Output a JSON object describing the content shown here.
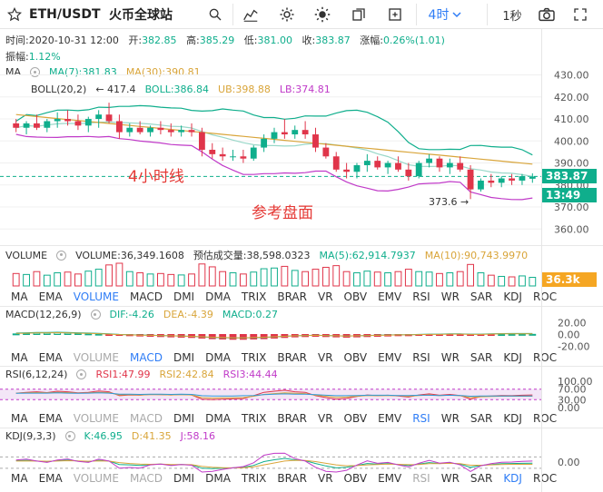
{
  "toolbar": {
    "symbol": "ETH/USDT",
    "exchange": "火币全球站",
    "period": "4时",
    "interval": "1秒",
    "icons": [
      "star-icon",
      "search-icon",
      "indicator-icon",
      "settings-icon",
      "theme-icon",
      "copy-icon",
      "fullscreen-icon",
      "camera-icon",
      "expand-icon"
    ]
  },
  "info": {
    "time_label": "时间:",
    "time": "2020-10-31 12:00",
    "open_label": "开:",
    "open": "382.85",
    "high_label": "高:",
    "high": "385.29",
    "low_label": "低:",
    "low": "381.00",
    "close_label": "收:",
    "close": "383.87",
    "change_label": "涨幅:",
    "change": "0.26%(1.01)",
    "amp_label": "振幅:",
    "amp": "1.12%"
  },
  "main_legend": {
    "ma_name": "MA",
    "ma7": "MA(7):381.83",
    "ma30": "MA(30):390.81",
    "boll_name": "BOLL(20,2)",
    "boll": "BOLL:386.84",
    "ub": "UB:398.88",
    "lb": "LB:374.81"
  },
  "annotations": {
    "a1": "4小时线",
    "a2": "参考盘面",
    "max": "← 417.4",
    "min": "373.6 →"
  },
  "price_badges": {
    "last": "383.87",
    "countdown": "13:49",
    "volume": "36.3k"
  },
  "volume_legend": {
    "name": "VOLUME",
    "volume": "VOLUME:36,349.1608",
    "forecast": "预估成交量:38,598.0323",
    "ma5": "MA(5):62,914.7937",
    "ma10": "MA(10):90,743.9970"
  },
  "macd_legend": {
    "name": "MACD(12,26,9)",
    "dif": "DIF:-4.26",
    "dea": "DEA:-4.39",
    "macd": "MACD:0.27"
  },
  "rsi_legend": {
    "name": "RSI(6,12,24)",
    "rsi1": "RSI1:47.99",
    "rsi2": "RSI2:42.84",
    "rsi3": "RSI3:44.44"
  },
  "kdj_legend": {
    "name": "KDJ(9,3,3)",
    "k": "K:46.95",
    "d": "D:41.35",
    "j": "J:58.16"
  },
  "indicator_tabs": [
    "MA",
    "EMA",
    "VOLUME",
    "MACD",
    "DMI",
    "DMA",
    "TRIX",
    "BRAR",
    "VR",
    "OBV",
    "EMV",
    "RSI",
    "WR",
    "SAR",
    "KDJ",
    "ROC"
  ],
  "colors": {
    "up": "#0fae8c",
    "down": "#e0354a",
    "accent": "#2f7df6",
    "ma7": "#0fae8c",
    "ma30": "#d9a53a",
    "boll_lb": "#c03ac8",
    "ub": "#d9a53a"
  },
  "chart_data": [
    {
      "type": "candlestick",
      "title": "",
      "ylim": [
        356,
        436
      ],
      "yticks": [
        "430.00",
        "420.00",
        "410.00",
        "400.00",
        "390.00",
        "380.00",
        "370.00",
        "360.00"
      ],
      "candles": [
        {
          "o": 408,
          "h": 410,
          "l": 404,
          "c": 406
        },
        {
          "o": 406,
          "h": 409,
          "l": 403,
          "c": 408
        },
        {
          "o": 408,
          "h": 412,
          "l": 405,
          "c": 406
        },
        {
          "o": 406,
          "h": 410,
          "l": 404,
          "c": 409
        },
        {
          "o": 409,
          "h": 413,
          "l": 406,
          "c": 410
        },
        {
          "o": 410,
          "h": 414,
          "l": 407,
          "c": 409
        },
        {
          "o": 409,
          "h": 412,
          "l": 405,
          "c": 407
        },
        {
          "o": 407,
          "h": 411,
          "l": 404,
          "c": 410
        },
        {
          "o": 410,
          "h": 414,
          "l": 406,
          "c": 412
        },
        {
          "o": 412,
          "h": 417.4,
          "l": 408,
          "c": 409
        },
        {
          "o": 409,
          "h": 412,
          "l": 401,
          "c": 404
        },
        {
          "o": 404,
          "h": 408,
          "l": 402,
          "c": 406
        },
        {
          "o": 406,
          "h": 409,
          "l": 403,
          "c": 404
        },
        {
          "o": 404,
          "h": 407,
          "l": 402,
          "c": 406
        },
        {
          "o": 406,
          "h": 409,
          "l": 403,
          "c": 405
        },
        {
          "o": 405,
          "h": 408,
          "l": 402,
          "c": 404
        },
        {
          "o": 404,
          "h": 407,
          "l": 402,
          "c": 405
        },
        {
          "o": 405,
          "h": 408,
          "l": 402,
          "c": 404
        },
        {
          "o": 404,
          "h": 406,
          "l": 393,
          "c": 396
        },
        {
          "o": 396,
          "h": 399,
          "l": 392,
          "c": 394
        },
        {
          "o": 394,
          "h": 397,
          "l": 391,
          "c": 393
        },
        {
          "o": 393,
          "h": 396,
          "l": 391,
          "c": 393
        },
        {
          "o": 393,
          "h": 396,
          "l": 390,
          "c": 392
        },
        {
          "o": 392,
          "h": 398,
          "l": 391,
          "c": 397
        },
        {
          "o": 397,
          "h": 403,
          "l": 395,
          "c": 401
        },
        {
          "o": 401,
          "h": 406,
          "l": 399,
          "c": 404
        },
        {
          "o": 404,
          "h": 410,
          "l": 401,
          "c": 403
        },
        {
          "o": 403,
          "h": 407,
          "l": 401,
          "c": 405
        },
        {
          "o": 405,
          "h": 409,
          "l": 401,
          "c": 403
        },
        {
          "o": 403,
          "h": 406,
          "l": 395,
          "c": 397
        },
        {
          "o": 397,
          "h": 399,
          "l": 392,
          "c": 393
        },
        {
          "o": 393,
          "h": 395,
          "l": 386,
          "c": 387
        },
        {
          "o": 387,
          "h": 390,
          "l": 383,
          "c": 386
        },
        {
          "o": 386,
          "h": 390,
          "l": 383,
          "c": 389
        },
        {
          "o": 389,
          "h": 394,
          "l": 386,
          "c": 391
        },
        {
          "o": 391,
          "h": 393,
          "l": 387,
          "c": 388
        },
        {
          "o": 388,
          "h": 391,
          "l": 385,
          "c": 390
        },
        {
          "o": 390,
          "h": 393,
          "l": 386,
          "c": 387
        },
        {
          "o": 387,
          "h": 390,
          "l": 382,
          "c": 384
        },
        {
          "o": 384,
          "h": 391,
          "l": 383,
          "c": 390
        },
        {
          "o": 390,
          "h": 394,
          "l": 388,
          "c": 392
        },
        {
          "o": 392,
          "h": 393,
          "l": 386,
          "c": 388
        },
        {
          "o": 388,
          "h": 392,
          "l": 385,
          "c": 390
        },
        {
          "o": 390,
          "h": 393,
          "l": 386,
          "c": 387
        },
        {
          "o": 387,
          "h": 389,
          "l": 373.6,
          "c": 378
        },
        {
          "o": 378,
          "h": 383,
          "l": 377,
          "c": 382
        },
        {
          "o": 382,
          "h": 385,
          "l": 379,
          "c": 381
        },
        {
          "o": 381,
          "h": 384,
          "l": 379,
          "c": 383
        },
        {
          "o": 383,
          "h": 385,
          "l": 380,
          "c": 382
        },
        {
          "o": 382,
          "h": 385,
          "l": 380,
          "c": 384
        },
        {
          "o": 382.85,
          "h": 385.29,
          "l": 381,
          "c": 383.87
        }
      ]
    },
    {
      "type": "bar",
      "title": "VOLUME",
      "ylabel": "",
      "values": [
        52,
        48,
        60,
        45,
        55,
        58,
        50,
        62,
        70,
        88,
        95,
        60,
        55,
        50,
        52,
        48,
        46,
        50,
        92,
        80,
        60,
        55,
        50,
        58,
        72,
        75,
        82,
        65,
        60,
        70,
        78,
        85,
        60,
        55,
        62,
        58,
        55,
        60,
        70,
        60,
        58,
        52,
        55,
        60,
        90,
        55,
        45,
        40,
        38,
        42,
        36
      ]
    },
    {
      "type": "bar",
      "title": "MACD",
      "yticks": [
        "20.00",
        "0.00",
        "-20.00"
      ],
      "values": [
        1,
        1.5,
        2,
        2,
        2.5,
        2,
        1.5,
        1,
        0.5,
        -0.5,
        -1.5,
        -2,
        -2.5,
        -3,
        -3.5,
        -4,
        -4.5,
        -5,
        -6,
        -7,
        -7.5,
        -8,
        -8,
        -7.5,
        -7,
        -6,
        -5,
        -4,
        -3.5,
        -3,
        -3.5,
        -4,
        -4.5,
        -4,
        -3.5,
        -3,
        -2.5,
        -2,
        -2,
        -1.5,
        -1,
        -1,
        -0.5,
        -0.5,
        -1,
        -1,
        -0.5,
        0,
        0.2,
        0.25,
        0.27
      ]
    },
    {
      "type": "line",
      "title": "RSI",
      "yticks": [
        "100.00",
        "70.00",
        "30.00",
        "0.00"
      ],
      "series": [
        {
          "name": "RSI1",
          "values": [
            55,
            58,
            60,
            57,
            62,
            60,
            56,
            58,
            63,
            60,
            45,
            48,
            47,
            50,
            49,
            48,
            50,
            48,
            32,
            30,
            32,
            33,
            34,
            45,
            58,
            62,
            66,
            60,
            58,
            45,
            38,
            32,
            35,
            42,
            48,
            45,
            47,
            44,
            40,
            48,
            52,
            47,
            50,
            46,
            32,
            42,
            44,
            46,
            45,
            47,
            48
          ]
        },
        {
          "name": "RSI2",
          "values": [
            55,
            56,
            57,
            56,
            58,
            57,
            55,
            56,
            58,
            57,
            48,
            49,
            48,
            49,
            49,
            48,
            49,
            48,
            38,
            36,
            37,
            37,
            38,
            43,
            50,
            53,
            56,
            54,
            53,
            47,
            43,
            39,
            40,
            43,
            46,
            45,
            46,
            45,
            43,
            46,
            48,
            46,
            47,
            45,
            38,
            41,
            42,
            43,
            43,
            43,
            43
          ]
        },
        {
          "name": "RSI3",
          "values": [
            54,
            55,
            55,
            55,
            56,
            55,
            54,
            55,
            56,
            55,
            51,
            51,
            50,
            51,
            51,
            50,
            51,
            50,
            45,
            44,
            44,
            44,
            45,
            46,
            49,
            51,
            52,
            51,
            51,
            49,
            47,
            45,
            45,
            46,
            47,
            47,
            47,
            46,
            46,
            47,
            47,
            46,
            47,
            46,
            43,
            44,
            44,
            44,
            44,
            44,
            44
          ]
        }
      ]
    },
    {
      "type": "line",
      "title": "KDJ",
      "yticks": [
        "0.00"
      ],
      "series": [
        {
          "name": "K",
          "values": [
            60,
            62,
            58,
            55,
            60,
            63,
            58,
            55,
            62,
            58,
            40,
            38,
            35,
            40,
            42,
            38,
            40,
            38,
            20,
            18,
            20,
            22,
            25,
            35,
            55,
            65,
            72,
            65,
            60,
            45,
            32,
            22,
            25,
            35,
            45,
            42,
            45,
            40,
            35,
            42,
            50,
            45,
            48,
            42,
            25,
            35,
            40,
            44,
            45,
            46,
            47
          ]
        },
        {
          "name": "D",
          "values": [
            58,
            59,
            58,
            57,
            58,
            60,
            59,
            57,
            59,
            58,
            50,
            45,
            42,
            41,
            42,
            40,
            40,
            39,
            30,
            25,
            23,
            22,
            23,
            28,
            38,
            48,
            58,
            62,
            61,
            55,
            46,
            38,
            33,
            34,
            38,
            40,
            42,
            41,
            39,
            40,
            44,
            44,
            46,
            44,
            36,
            36,
            38,
            40,
            41,
            41,
            41
          ]
        },
        {
          "name": "J",
          "values": [
            64,
            68,
            58,
            51,
            64,
            69,
            56,
            51,
            68,
            58,
            20,
            24,
            21,
            38,
            42,
            34,
            40,
            36,
            0,
            4,
            14,
            22,
            29,
            49,
            89,
            99,
            100,
            71,
            58,
            25,
            4,
            0,
            9,
            37,
            59,
            46,
            51,
            38,
            27,
            46,
            62,
            47,
            52,
            38,
            3,
            33,
            44,
            52,
            53,
            56,
            58
          ]
        }
      ]
    }
  ]
}
